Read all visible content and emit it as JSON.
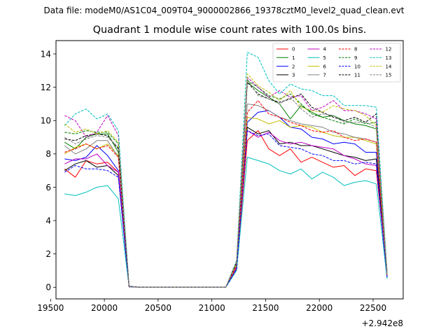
{
  "figure": {
    "suptitle": "Data file: modeM0/AS1C04_009T04_9000002866_19378cztM0_level2_quad_clean.evt",
    "title": "Quadrant 1 module wise count rates with 100.0s bins."
  },
  "chart_data": {
    "type": "line",
    "title": "Quadrant 1 module wise count rates with 100.0s bins.",
    "xlabel": "",
    "ylabel": "",
    "x_offset_label": "+2.942e8",
    "xlim": [
      19550,
      22780
    ],
    "ylim": [
      -0.7,
      14.8
    ],
    "xticks": [
      19500,
      20000,
      20500,
      21000,
      21500,
      22000,
      22500
    ],
    "xtick_labels": [
      "19500",
      "20000",
      "20500",
      "21000",
      "21500",
      "22000",
      "22500"
    ],
    "yticks": [
      0,
      2,
      4,
      6,
      8,
      10,
      12,
      14
    ],
    "ytick_labels": [
      "0",
      "2",
      "4",
      "6",
      "8",
      "10",
      "12",
      "14"
    ],
    "grid": false,
    "legend_placement": "top-right",
    "legend_columns": 4,
    "x": [
      19630,
      19730,
      19830,
      19930,
      20030,
      20130,
      20230,
      20330,
      20430,
      20530,
      20630,
      20730,
      20830,
      20930,
      21030,
      21130,
      21230,
      21330,
      21430,
      21530,
      21630,
      21730,
      21830,
      21930,
      22030,
      22130,
      22230,
      22330,
      22430,
      22530,
      22630
    ],
    "series": [
      {
        "name": "0",
        "color": "#ff0000",
        "dash": "solid",
        "values": [
          7.1,
          6.6,
          7.6,
          7.4,
          7.5,
          6.9,
          0.02,
          0,
          0,
          0,
          0,
          0,
          0,
          0,
          0,
          0,
          1.1,
          8.8,
          9.4,
          8.3,
          7.9,
          8.3,
          7.5,
          7.8,
          7.5,
          7.2,
          7.3,
          6.7,
          7.1,
          7.0,
          0.8
        ]
      },
      {
        "name": "1",
        "color": "#008000",
        "dash": "solid",
        "values": [
          8.7,
          8.3,
          9.0,
          9.2,
          9.2,
          8.1,
          0.05,
          0,
          0,
          0,
          0,
          0,
          0,
          0,
          0,
          0,
          1.4,
          12.3,
          11.8,
          11.4,
          11.0,
          10.1,
          10.9,
          10.5,
          10.2,
          10.3,
          10.0,
          9.8,
          9.7,
          9.5,
          0.6
        ]
      },
      {
        "name": "2",
        "color": "#0000ff",
        "dash": "solid",
        "values": [
          7.7,
          7.6,
          7.8,
          8.5,
          7.9,
          7.0,
          0.04,
          0,
          0,
          0,
          0,
          0,
          0,
          0,
          0,
          0,
          1.2,
          9.9,
          10.5,
          10.6,
          10.2,
          9.6,
          9.5,
          9.0,
          8.9,
          8.6,
          8.7,
          8.6,
          8.1,
          8.1,
          0.7
        ]
      },
      {
        "name": "3",
        "color": "#000000",
        "dash": "solid",
        "values": [
          7.0,
          7.4,
          7.6,
          7.2,
          7.3,
          6.7,
          0.03,
          0,
          0,
          0,
          0,
          0,
          0,
          0,
          0,
          0,
          1.3,
          9.6,
          9.2,
          9.4,
          8.6,
          8.7,
          8.5,
          8.5,
          8.3,
          8.1,
          7.9,
          7.8,
          7.6,
          7.7,
          0.7
        ]
      },
      {
        "name": "4",
        "color": "#bf00bf",
        "dash": "solid",
        "values": [
          7.4,
          7.7,
          7.7,
          8.0,
          7.3,
          6.9,
          0.04,
          0,
          0,
          0,
          0,
          0,
          0,
          0,
          0,
          0,
          1.2,
          9.4,
          9.0,
          9.3,
          8.8,
          8.6,
          8.7,
          8.5,
          8.4,
          8.3,
          7.9,
          7.7,
          7.4,
          7.3,
          0.6
        ]
      },
      {
        "name": "5",
        "color": "#00bfbf",
        "dash": "solid",
        "values": [
          5.6,
          5.5,
          5.7,
          6.0,
          6.1,
          5.3,
          0.03,
          0,
          0,
          0,
          0,
          0,
          0,
          0,
          0,
          0,
          1.0,
          7.8,
          7.6,
          7.4,
          7.0,
          6.8,
          7.1,
          6.5,
          6.9,
          6.6,
          6.1,
          6.3,
          6.4,
          6.2,
          0.5
        ]
      },
      {
        "name": "6",
        "color": "#bfbf00",
        "dash": "solid",
        "values": [
          8.0,
          8.4,
          8.6,
          8.3,
          8.6,
          7.9,
          0.05,
          0,
          0,
          0,
          0,
          0,
          0,
          0,
          0,
          0,
          1.3,
          10.2,
          10.1,
          9.8,
          10.0,
          9.6,
          9.7,
          9.6,
          9.3,
          9.1,
          9.0,
          9.0,
          8.8,
          8.6,
          0.7
        ]
      },
      {
        "name": "7",
        "color": "#808080",
        "dash": "solid",
        "values": [
          8.5,
          8.0,
          8.3,
          8.8,
          8.8,
          7.8,
          0.05,
          0,
          0,
          0,
          0,
          0,
          0,
          0,
          0,
          0,
          1.4,
          11.0,
          10.9,
          10.6,
          10.2,
          10.0,
          9.8,
          9.7,
          9.6,
          9.3,
          9.2,
          9.0,
          8.9,
          8.7,
          0.7
        ]
      },
      {
        "name": "8",
        "color": "#ff0000",
        "dash": "dashed",
        "values": [
          8.1,
          8.3,
          8.6,
          8.3,
          8.5,
          7.8,
          0.05,
          0,
          0,
          0,
          0,
          0,
          0,
          0,
          0,
          0,
          1.3,
          10.5,
          11.2,
          10.4,
          10.2,
          9.9,
          9.7,
          9.4,
          9.3,
          9.4,
          9.0,
          8.8,
          8.9,
          8.7,
          0.7
        ]
      },
      {
        "name": "9",
        "color": "#008000",
        "dash": "dashed",
        "values": [
          9.3,
          9.2,
          9.4,
          9.3,
          9.3,
          8.6,
          0.06,
          0,
          0,
          0,
          0,
          0,
          0,
          0,
          0,
          0,
          1.5,
          12.4,
          12.0,
          11.5,
          11.3,
          11.6,
          11.0,
          10.4,
          10.2,
          10.0,
          9.8,
          10.1,
          9.8,
          9.9,
          0.8
        ]
      },
      {
        "name": "10",
        "color": "#0000ff",
        "dash": "dashed",
        "values": [
          6.9,
          7.3,
          7.1,
          7.1,
          7.0,
          6.6,
          0.04,
          0,
          0,
          0,
          0,
          0,
          0,
          0,
          0,
          0,
          1.1,
          9.4,
          9.1,
          9.2,
          8.5,
          8.4,
          8.3,
          8.0,
          7.9,
          7.6,
          7.6,
          7.4,
          7.5,
          7.4,
          0.6
        ]
      },
      {
        "name": "11",
        "color": "#000000",
        "dash": "dashed",
        "values": [
          8.9,
          8.8,
          9.1,
          9.2,
          9.1,
          8.3,
          0.06,
          0,
          0,
          0,
          0,
          0,
          0,
          0,
          0,
          0,
          1.5,
          12.3,
          11.6,
          11.3,
          11.1,
          11.3,
          11.6,
          10.8,
          10.5,
          10.2,
          10.0,
          10.2,
          9.9,
          10.4,
          0.9
        ]
      },
      {
        "name": "12",
        "color": "#bf00bf",
        "dash": "dashed",
        "values": [
          10.3,
          10.0,
          9.0,
          9.3,
          10.3,
          9.1,
          0.07,
          0,
          0,
          0,
          0,
          0,
          0,
          0,
          0,
          0,
          1.6,
          12.6,
          12.0,
          11.4,
          11.8,
          11.4,
          11.5,
          10.6,
          10.8,
          11.2,
          10.6,
          10.6,
          10.4,
          10.1,
          0.9
        ]
      },
      {
        "name": "13",
        "color": "#00bfbf",
        "dash": "dashed",
        "values": [
          9.7,
          10.4,
          10.7,
          10.1,
          10.4,
          9.4,
          0.07,
          0,
          0,
          0,
          0,
          0,
          0,
          0,
          0,
          0,
          1.6,
          14.1,
          13.8,
          12.4,
          11.6,
          12.2,
          11.9,
          11.8,
          11.5,
          11.5,
          10.9,
          10.9,
          10.9,
          10.8,
          0.9
        ]
      },
      {
        "name": "14",
        "color": "#bfbf00",
        "dash": "dashed",
        "values": [
          9.8,
          9.3,
          9.5,
          9.2,
          9.4,
          8.7,
          0.06,
          0,
          0,
          0,
          0,
          0,
          0,
          0,
          0,
          0,
          1.5,
          12.8,
          12.1,
          11.7,
          11.2,
          11.8,
          10.8,
          10.6,
          10.5,
          10.9,
          10.7,
          10.6,
          10.3,
          9.7,
          0.8
        ]
      },
      {
        "name": "15",
        "color": "#808080",
        "dash": "dashed",
        "values": [
          9.0,
          8.6,
          8.9,
          9.1,
          9.0,
          8.4,
          0.05,
          0,
          0,
          0,
          0,
          0,
          0,
          0,
          0,
          0,
          1.4,
          12.5,
          11.5,
          11.3,
          11.0,
          11.4,
          10.7,
          10.2,
          10.4,
          10.3,
          9.9,
          9.9,
          9.9,
          9.6,
          0.8
        ]
      }
    ]
  }
}
